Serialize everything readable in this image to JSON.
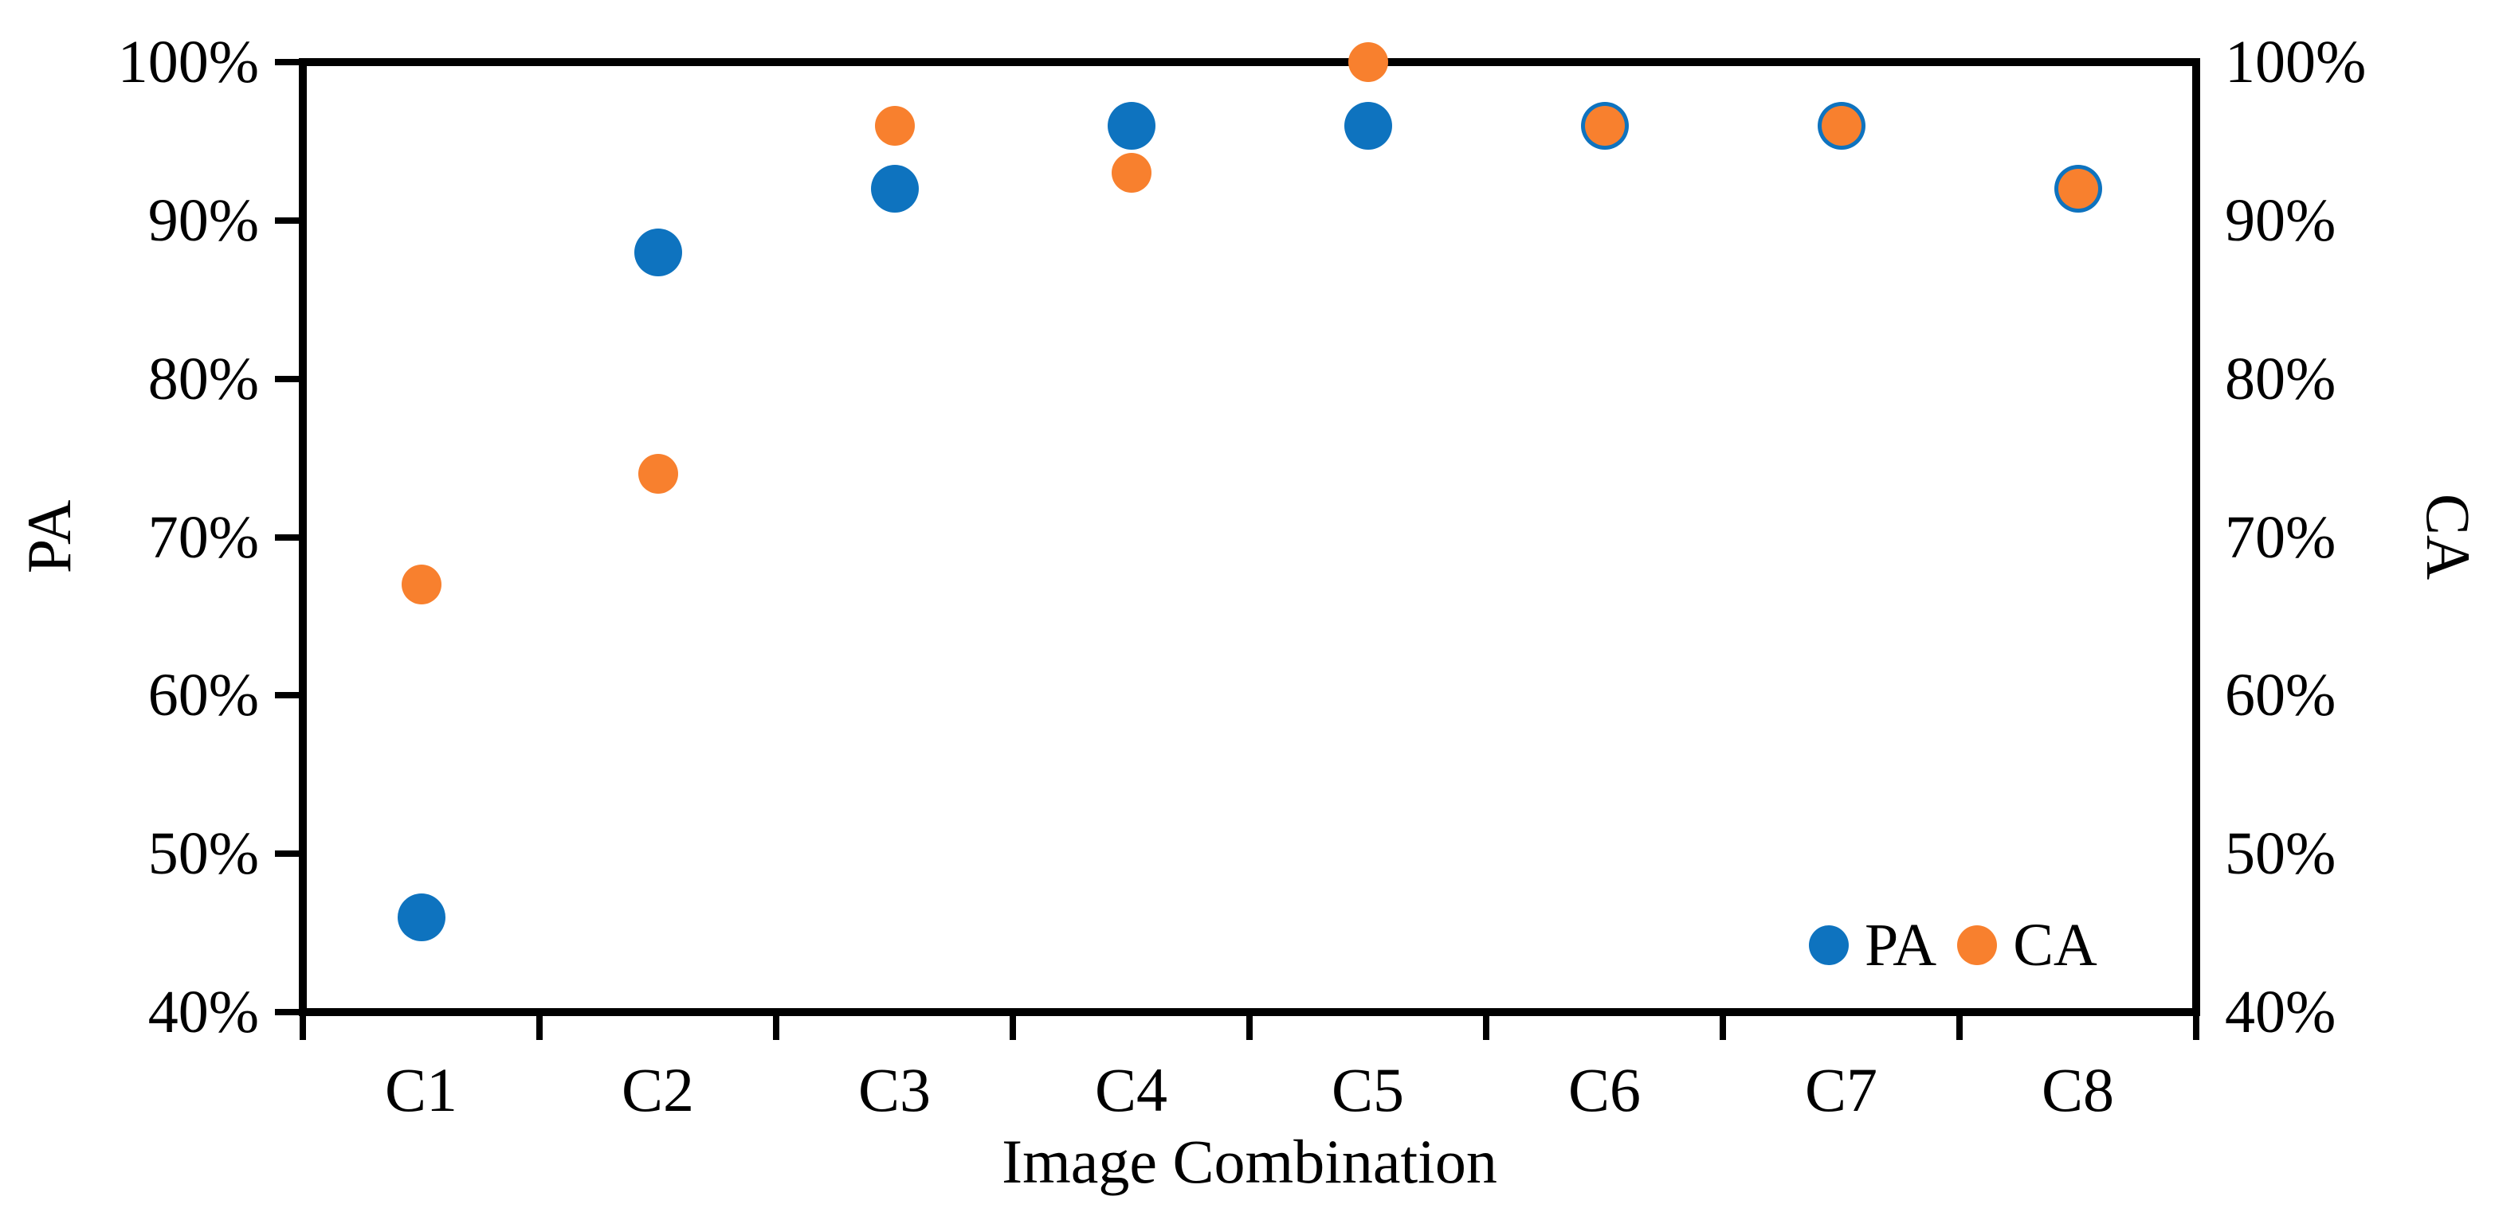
{
  "figure": {
    "x_axis_title": "Image Combination",
    "y_axis_left_title": "PA",
    "y_axis_right_title": "CA"
  },
  "chart_data": {
    "type": "scatter",
    "categories": [
      "C1",
      "C2",
      "C3",
      "C4",
      "C5",
      "C6",
      "C7",
      "C8"
    ],
    "series": [
      {
        "name": "PA",
        "axis": "left",
        "color": "#0E73BF",
        "marker_diameter": 60,
        "values": [
          46,
          88,
          92,
          96,
          96,
          96,
          96,
          92
        ]
      },
      {
        "name": "CA",
        "axis": "right",
        "color": "#F8802E",
        "marker_diameter": 50,
        "values": [
          67,
          74,
          96,
          93,
          100,
          96,
          96,
          92
        ]
      }
    ],
    "title": "",
    "xlabel": "Image Combination",
    "ylabel_left": "PA",
    "ylabel_right": "CA",
    "ylim": [
      40,
      100
    ],
    "y_ticks": [
      {
        "value": 40,
        "label": "40%"
      },
      {
        "value": 50,
        "label": "50%"
      },
      {
        "value": 60,
        "label": "60%"
      },
      {
        "value": 70,
        "label": "70%"
      },
      {
        "value": 80,
        "label": "80%"
      },
      {
        "value": 90,
        "label": "90%"
      },
      {
        "value": 100,
        "label": "100%"
      }
    ],
    "grid": false,
    "legend": {
      "position": "inside-bottom-right",
      "entries": [
        "PA",
        "CA"
      ]
    }
  }
}
